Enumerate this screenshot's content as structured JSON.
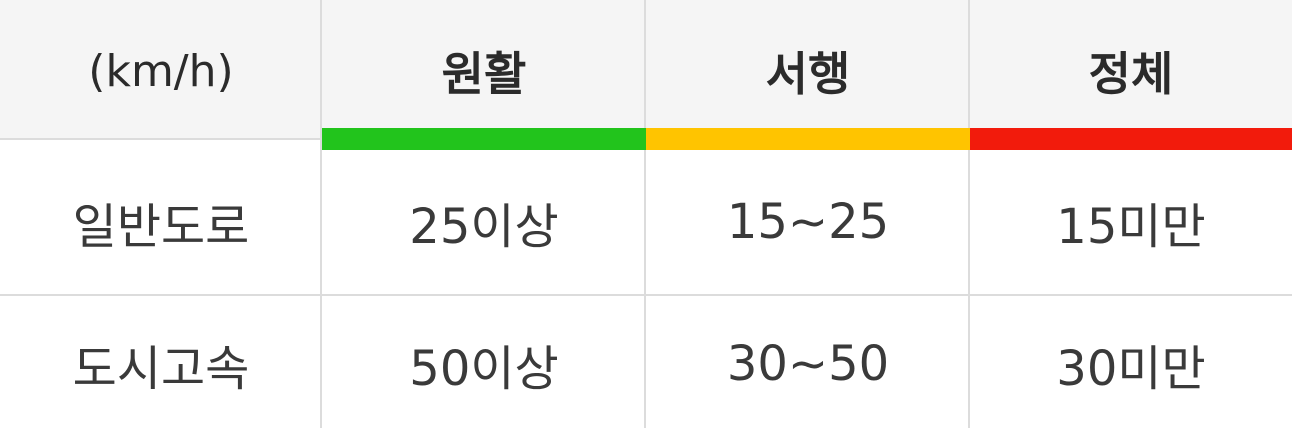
{
  "header": {
    "unit_label": "(km/h)",
    "smooth_label": "원활",
    "slow_label": "서행",
    "jam_label": "정체"
  },
  "status_colors": {
    "smooth": "#22c41c",
    "slow": "#ffc400",
    "jam": "#f21b0c"
  },
  "rows": [
    {
      "road_type": "일반도로",
      "smooth": "25이상",
      "slow": "15~25",
      "jam": "15미만"
    },
    {
      "road_type": "도시고속",
      "smooth": "50이상",
      "slow": "30~50",
      "jam": "30미만"
    }
  ]
}
